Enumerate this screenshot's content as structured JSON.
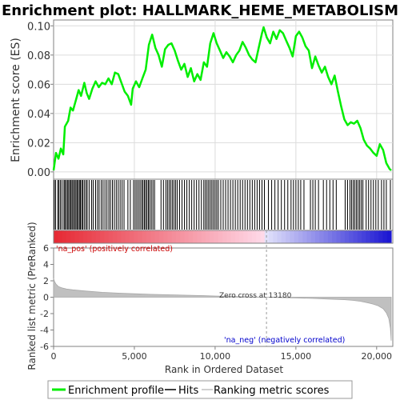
{
  "chart_data": [
    {
      "type": "line",
      "title": "Enrichment plot: HALLMARK_HEME_METABOLISM",
      "ylabel": "Enrichment score (ES)",
      "ylim": [
        -0.005,
        0.104
      ],
      "yticks": [
        "0.00",
        "0.02",
        "0.04",
        "0.06",
        "0.08",
        "0.10"
      ],
      "xlim": [
        0,
        21000
      ],
      "grid": true,
      "series": [
        {
          "name": "Enrichment profile",
          "color": "#00ee00",
          "x": [
            0,
            150,
            300,
            450,
            600,
            700,
            900,
            1050,
            1200,
            1400,
            1550,
            1700,
            1900,
            2050,
            2200,
            2400,
            2600,
            2800,
            3000,
            3200,
            3400,
            3600,
            3800,
            4000,
            4200,
            4400,
            4600,
            4800,
            4900,
            5100,
            5300,
            5500,
            5700,
            5900,
            6100,
            6300,
            6500,
            6700,
            6900,
            7100,
            7300,
            7500,
            7700,
            7900,
            8100,
            8300,
            8500,
            8700,
            8900,
            9100,
            9300,
            9500,
            9700,
            9900,
            10100,
            10300,
            10500,
            10700,
            10900,
            11100,
            11300,
            11500,
            11700,
            11900,
            12100,
            12300,
            12500,
            12700,
            12900,
            13000,
            13200,
            13400,
            13600,
            13800,
            14000,
            14200,
            14400,
            14600,
            14800,
            15000,
            15200,
            15400,
            15600,
            15800,
            16000,
            16200,
            16400,
            16600,
            16800,
            17000,
            17200,
            17400,
            17600,
            17800,
            18000,
            18200,
            18400,
            18600,
            18800,
            19000,
            19200,
            19400,
            19600,
            19800,
            20000,
            20200,
            20400,
            20600,
            20800,
            20900
          ],
          "y": [
            0.001,
            0.013,
            0.009,
            0.016,
            0.012,
            0.031,
            0.035,
            0.044,
            0.042,
            0.05,
            0.056,
            0.052,
            0.061,
            0.054,
            0.05,
            0.057,
            0.062,
            0.058,
            0.061,
            0.06,
            0.064,
            0.06,
            0.068,
            0.067,
            0.061,
            0.055,
            0.052,
            0.046,
            0.057,
            0.062,
            0.058,
            0.064,
            0.07,
            0.087,
            0.094,
            0.085,
            0.08,
            0.072,
            0.084,
            0.087,
            0.088,
            0.083,
            0.076,
            0.07,
            0.074,
            0.065,
            0.071,
            0.062,
            0.067,
            0.063,
            0.075,
            0.072,
            0.088,
            0.095,
            0.088,
            0.083,
            0.078,
            0.082,
            0.079,
            0.075,
            0.08,
            0.083,
            0.089,
            0.085,
            0.08,
            0.077,
            0.075,
            0.085,
            0.095,
            0.099,
            0.092,
            0.088,
            0.096,
            0.091,
            0.097,
            0.095,
            0.09,
            0.085,
            0.079,
            0.093,
            0.096,
            0.092,
            0.086,
            0.083,
            0.071,
            0.079,
            0.073,
            0.068,
            0.072,
            0.065,
            0.06,
            0.066,
            0.055,
            0.045,
            0.036,
            0.032,
            0.034,
            0.033,
            0.035,
            0.03,
            0.022,
            0.018,
            0.016,
            0.013,
            0.011,
            0.019,
            0.015,
            0.006,
            0.002,
            0.001
          ]
        }
      ]
    },
    {
      "type": "scatter",
      "title": "",
      "series": [
        {
          "name": "Hits",
          "color": "#000000",
          "x": [
            40,
            120,
            260,
            330,
            420,
            520,
            640,
            700,
            780,
            860,
            930,
            1010,
            1080,
            1150,
            1230,
            1300,
            1380,
            1450,
            1520,
            1600,
            1660,
            1740,
            1810,
            1900,
            2000,
            2080,
            2200,
            2350,
            2450,
            2600,
            2720,
            2820,
            2950,
            3060,
            3180,
            3300,
            3420,
            3520,
            3640,
            3760,
            3880,
            4000,
            4120,
            4240,
            4360,
            4600,
            4750,
            4950,
            5050,
            5150,
            5250,
            5350,
            5450,
            5530,
            5620,
            5700,
            5780,
            5870,
            5950,
            6050,
            6150,
            6250,
            6650,
            6800,
            6950,
            7050,
            7150,
            7250,
            7350,
            7450,
            7550,
            7650,
            7800,
            7950,
            8100,
            8250,
            8400,
            8550,
            8700,
            8850,
            9000,
            9150,
            9300,
            9400,
            9500,
            9600,
            9700,
            9800,
            9900,
            10000,
            10100,
            10200,
            10350,
            10500,
            10650,
            10800,
            10950,
            11100,
            11250,
            11400,
            11550,
            11700,
            11850,
            12000,
            12150,
            12300,
            12450,
            12600,
            12750,
            12900,
            13050,
            13300,
            13500,
            13700,
            13900,
            14100,
            14300,
            14500,
            14700,
            14850,
            15000,
            15150,
            15300,
            15500,
            15900,
            16050,
            16200,
            16400,
            16700,
            16900,
            17100,
            17300,
            17500,
            18050,
            18200,
            18350,
            18450,
            18550,
            18650,
            18750,
            18850,
            18950,
            19050,
            19150,
            19350,
            19500,
            19650,
            19800,
            19950,
            20100,
            20300,
            20450,
            20600,
            20850
          ]
        }
      ]
    },
    {
      "type": "area",
      "title": "",
      "ylabel": "Ranked list metric (PreRanked)",
      "xlabel": "Rank in Ordered Dataset",
      "ylim": [
        -6,
        6
      ],
      "yticks": [
        "-6",
        "-4",
        "-2",
        "0",
        "2",
        "4",
        "6"
      ],
      "xlim": [
        0,
        21000
      ],
      "xticks": [
        "0",
        "5,000",
        "10,000",
        "15,000",
        "20,000"
      ],
      "annotations": {
        "pos_label": "'na_pos' (positively correlated)",
        "neg_label": "'na_neg' (negatively correlated)",
        "zero_cross": "Zero cross at 13180",
        "zero_cross_x": 13180
      },
      "series": [
        {
          "name": "Ranking metric scores",
          "color": "#c0c0c0",
          "x": [
            0,
            60,
            150,
            300,
            500,
            800,
            1200,
            2000,
            3000,
            4000,
            5000,
            6000,
            7000,
            8000,
            9000,
            10000,
            11000,
            12000,
            13180,
            14000,
            15000,
            16000,
            17000,
            18000,
            18500,
            19000,
            19500,
            19800,
            20100,
            20400,
            20600,
            20750,
            20850,
            20900
          ],
          "y": [
            2.3,
            1.9,
            1.6,
            1.3,
            1.15,
            1.0,
            0.9,
            0.75,
            0.6,
            0.5,
            0.42,
            0.35,
            0.3,
            0.25,
            0.2,
            0.15,
            0.1,
            0.05,
            0.0,
            -0.05,
            -0.1,
            -0.15,
            -0.22,
            -0.3,
            -0.38,
            -0.5,
            -0.7,
            -0.85,
            -1.05,
            -1.4,
            -1.9,
            -2.6,
            -3.8,
            -5.3
          ]
        }
      ]
    }
  ],
  "legend": {
    "items": [
      {
        "label": "Enrichment profile",
        "color": "#00ee00"
      },
      {
        "label": "Hits",
        "color": "#000000"
      },
      {
        "label": "Ranking metric scores",
        "color": "#c0c0c0"
      }
    ]
  }
}
